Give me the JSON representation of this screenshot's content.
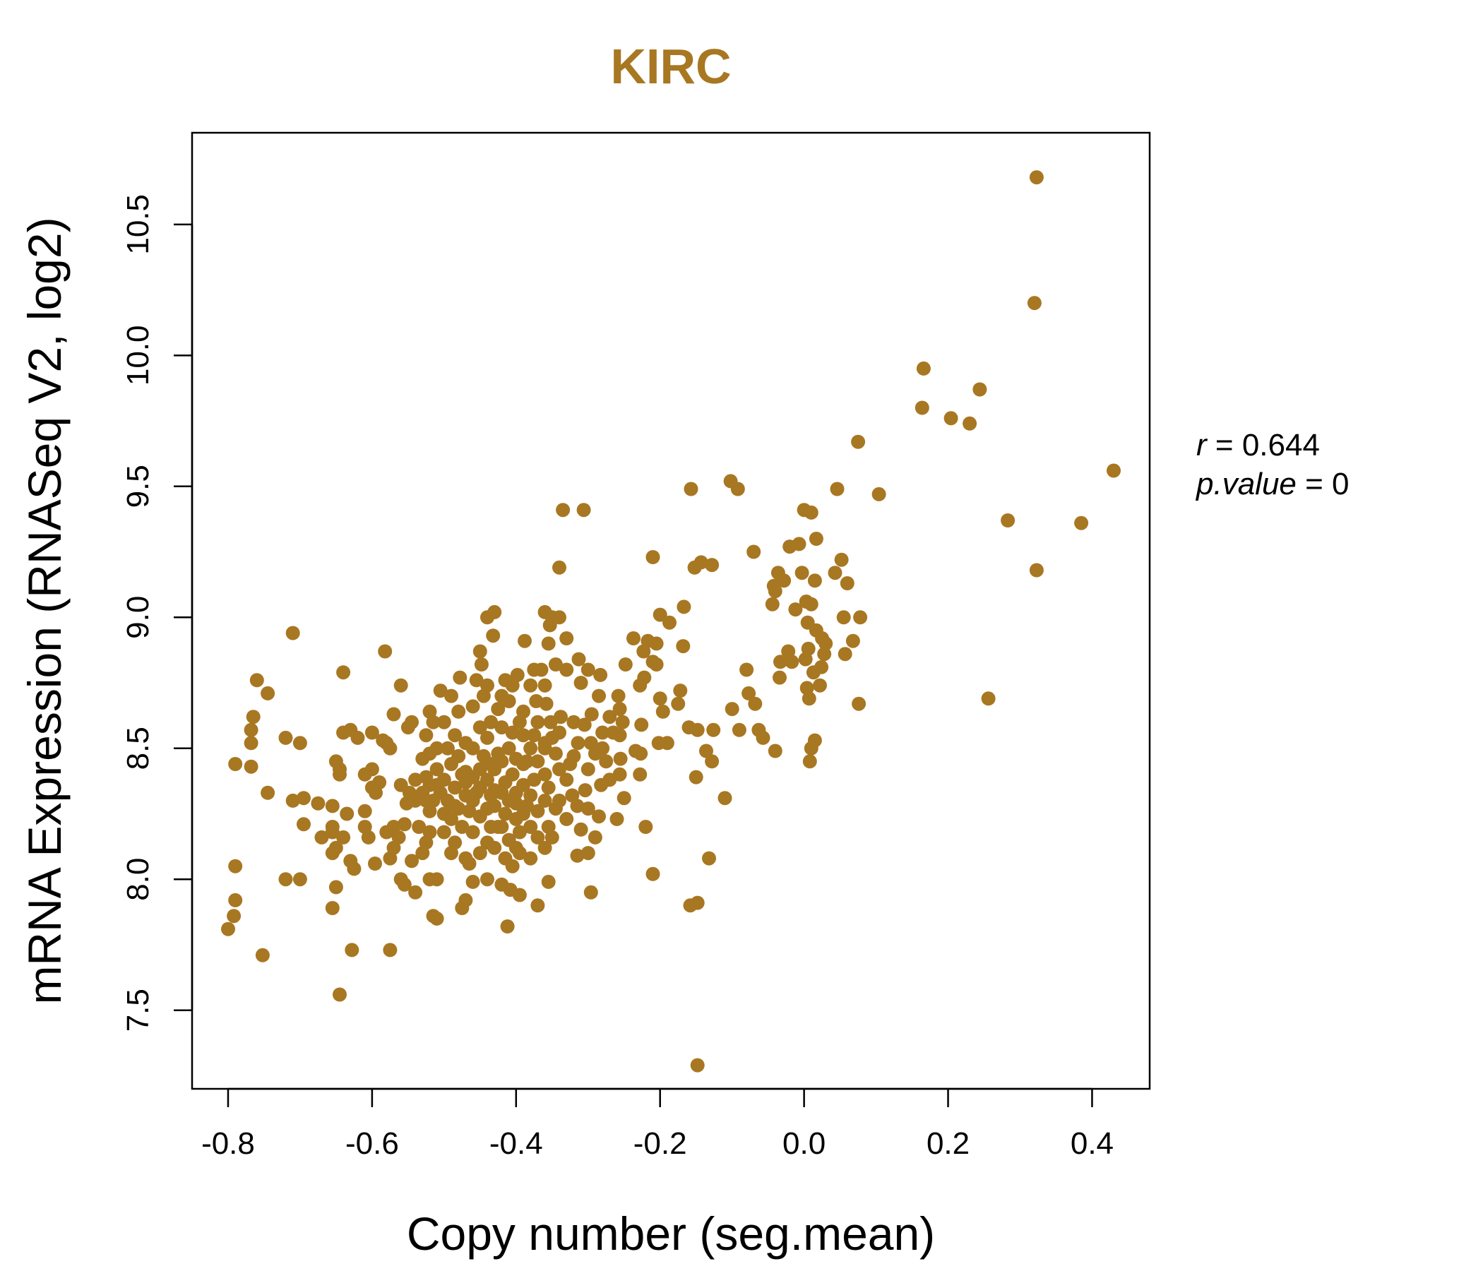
{
  "chart_data": {
    "type": "scatter",
    "title": "KIRC",
    "xlabel": "Copy number (seg.mean)",
    "ylabel": "mRNA Expression (RNASeq V2, log2)",
    "xlim": [
      -0.85,
      0.48
    ],
    "ylim": [
      7.2,
      10.85
    ],
    "xticks": [
      -0.8,
      -0.6,
      -0.4,
      -0.2,
      0.0,
      0.2,
      0.4
    ],
    "xtick_labels": [
      "-0.8",
      "-0.6",
      "-0.4",
      "-0.2",
      "0.0",
      "0.2",
      "0.4"
    ],
    "yticks": [
      7.5,
      8.0,
      8.5,
      9.0,
      9.5,
      10.0,
      10.5
    ],
    "ytick_labels": [
      "7.5",
      "8.0",
      "8.5",
      "9.0",
      "9.5",
      "10.0",
      "10.5"
    ],
    "point_color": "#a87722",
    "title_color": "#a87722",
    "grid": false,
    "annotations": [
      {
        "prefix": "r",
        "value": "0.644"
      },
      {
        "prefix": "p.value",
        "value": "0"
      }
    ],
    "points": [
      [
        0.323,
        10.68
      ],
      [
        0.32,
        10.2
      ],
      [
        0.166,
        9.95
      ],
      [
        0.164,
        9.8
      ],
      [
        0.244,
        9.87
      ],
      [
        0.204,
        9.76
      ],
      [
        0.23,
        9.74
      ],
      [
        0.075,
        9.67
      ],
      [
        0.43,
        9.56
      ],
      [
        0.046,
        9.49
      ],
      [
        0.104,
        9.47
      ],
      [
        0.283,
        9.37
      ],
      [
        0.385,
        9.36
      ],
      [
        0.323,
        9.18
      ],
      [
        0.256,
        8.69
      ],
      [
        -0.148,
        7.29
      ],
      [
        -0.102,
        9.52
      ],
      [
        -0.092,
        9.49
      ],
      [
        -0.157,
        9.49
      ],
      [
        -0.335,
        9.41
      ],
      [
        -0.306,
        9.41
      ],
      [
        -0.21,
        9.23
      ],
      [
        -0.143,
        9.21
      ],
      [
        -0.128,
        9.2
      ],
      [
        -0.152,
        9.19
      ],
      [
        -0.34,
        9.19
      ],
      [
        -0.07,
        9.25
      ],
      [
        -0.04,
        9.1
      ],
      [
        0.0,
        9.41
      ],
      [
        0.01,
        9.4
      ],
      [
        0.017,
        9.3
      ],
      [
        -0.02,
        9.27
      ],
      [
        -0.007,
        9.28
      ],
      [
        0.052,
        9.22
      ],
      [
        0.043,
        9.17
      ],
      [
        -0.036,
        9.17
      ],
      [
        -0.003,
        9.17
      ],
      [
        0.015,
        9.14
      ],
      [
        0.06,
        9.13
      ],
      [
        -0.028,
        9.14
      ],
      [
        -0.042,
        9.12
      ],
      [
        -0.044,
        9.05
      ],
      [
        0.003,
        9.06
      ],
      [
        0.01,
        9.05
      ],
      [
        0.078,
        9.0
      ],
      [
        0.055,
        9.0
      ],
      [
        -0.012,
        9.03
      ],
      [
        0.005,
        8.98
      ],
      [
        0.017,
        8.95
      ],
      [
        0.025,
        8.92
      ],
      [
        0.068,
        8.91
      ],
      [
        0.03,
        8.9
      ],
      [
        0.006,
        8.88
      ],
      [
        -0.022,
        8.87
      ],
      [
        0.028,
        8.86
      ],
      [
        0.057,
        8.86
      ],
      [
        0.002,
        8.84
      ],
      [
        -0.017,
        8.83
      ],
      [
        -0.033,
        8.83
      ],
      [
        0.024,
        8.81
      ],
      [
        0.013,
        8.79
      ],
      [
        -0.034,
        8.77
      ],
      [
        0.022,
        8.74
      ],
      [
        0.004,
        8.73
      ],
      [
        0.007,
        8.69
      ],
      [
        0.076,
        8.67
      ],
      [
        -0.08,
        8.8
      ],
      [
        -0.077,
        8.71
      ],
      [
        -0.068,
        8.67
      ],
      [
        -0.1,
        8.65
      ],
      [
        -0.09,
        8.57
      ],
      [
        -0.063,
        8.57
      ],
      [
        -0.057,
        8.54
      ],
      [
        -0.04,
        8.49
      ],
      [
        0.015,
        8.53
      ],
      [
        0.01,
        8.5
      ],
      [
        0.008,
        8.45
      ],
      [
        -0.172,
        8.72
      ],
      [
        -0.148,
        8.57
      ],
      [
        -0.126,
        8.57
      ],
      [
        -0.136,
        8.49
      ],
      [
        -0.128,
        8.45
      ],
      [
        -0.15,
        8.39
      ],
      [
        -0.11,
        8.31
      ],
      [
        -0.132,
        8.08
      ],
      [
        -0.158,
        7.9
      ],
      [
        -0.148,
        7.91
      ],
      [
        -0.21,
        8.02
      ],
      [
        -0.167,
        9.04
      ],
      [
        -0.2,
        9.01
      ],
      [
        -0.187,
        8.98
      ],
      [
        -0.217,
        8.91
      ],
      [
        -0.205,
        8.9
      ],
      [
        -0.168,
        8.89
      ],
      [
        -0.223,
        8.87
      ],
      [
        -0.21,
        8.83
      ],
      [
        -0.205,
        8.82
      ],
      [
        -0.222,
        8.77
      ],
      [
        -0.228,
        8.74
      ],
      [
        -0.2,
        8.69
      ],
      [
        -0.196,
        8.64
      ],
      [
        -0.175,
        8.67
      ],
      [
        -0.16,
        8.58
      ],
      [
        -0.19,
        8.52
      ],
      [
        -0.202,
        8.52
      ],
      [
        -0.226,
        8.59
      ],
      [
        -0.227,
        8.48
      ],
      [
        -0.228,
        8.4
      ],
      [
        -0.234,
        8.49
      ],
      [
        -0.22,
        8.2
      ],
      [
        -0.237,
        8.92
      ],
      [
        -0.248,
        8.82
      ],
      [
        -0.258,
        8.7
      ],
      [
        -0.256,
        8.65
      ],
      [
        -0.252,
        8.6
      ],
      [
        -0.27,
        8.62
      ],
      [
        -0.256,
        8.55
      ],
      [
        -0.28,
        8.5
      ],
      [
        -0.255,
        8.46
      ],
      [
        -0.256,
        8.4
      ],
      [
        -0.27,
        8.38
      ],
      [
        -0.25,
        8.31
      ],
      [
        -0.26,
        8.23
      ],
      [
        -0.285,
        8.7
      ],
      [
        -0.3,
        8.8
      ],
      [
        -0.283,
        8.78
      ],
      [
        -0.313,
        8.84
      ],
      [
        -0.33,
        8.8
      ],
      [
        -0.31,
        8.75
      ],
      [
        -0.295,
        8.63
      ],
      [
        -0.32,
        8.6
      ],
      [
        -0.305,
        8.59
      ],
      [
        -0.28,
        8.56
      ],
      [
        -0.296,
        8.52
      ],
      [
        -0.314,
        8.52
      ],
      [
        -0.29,
        8.48
      ],
      [
        -0.275,
        8.45
      ],
      [
        -0.32,
        8.47
      ],
      [
        -0.3,
        8.42
      ],
      [
        -0.282,
        8.36
      ],
      [
        -0.304,
        8.34
      ],
      [
        -0.322,
        8.32
      ],
      [
        -0.3,
        8.27
      ],
      [
        -0.285,
        8.24
      ],
      [
        -0.31,
        8.19
      ],
      [
        -0.29,
        8.16
      ],
      [
        -0.315,
        8.09
      ],
      [
        -0.3,
        8.1
      ],
      [
        -0.296,
        7.95
      ],
      [
        -0.338,
        8.62
      ],
      [
        -0.34,
        8.56
      ],
      [
        -0.35,
        8.54
      ],
      [
        -0.36,
        8.5
      ],
      [
        -0.345,
        8.48
      ],
      [
        -0.36,
        9.02
      ],
      [
        -0.35,
        9.0
      ],
      [
        -0.34,
        9.0
      ],
      [
        -0.353,
        8.97
      ],
      [
        -0.355,
        8.9
      ],
      [
        -0.33,
        8.92
      ],
      [
        -0.345,
        8.82
      ],
      [
        -0.365,
        8.8
      ],
      [
        -0.375,
        8.8
      ],
      [
        -0.36,
        8.74
      ],
      [
        -0.38,
        8.74
      ],
      [
        -0.372,
        8.68
      ],
      [
        -0.358,
        8.67
      ],
      [
        -0.39,
        8.64
      ],
      [
        -0.37,
        8.6
      ],
      [
        -0.352,
        8.6
      ],
      [
        -0.375,
        8.55
      ],
      [
        -0.39,
        8.55
      ],
      [
        -0.36,
        8.52
      ],
      [
        -0.38,
        8.5
      ],
      [
        -0.37,
        8.45
      ],
      [
        -0.39,
        8.44
      ],
      [
        -0.36,
        8.4
      ],
      [
        -0.375,
        8.38
      ],
      [
        -0.355,
        8.35
      ],
      [
        -0.38,
        8.32
      ],
      [
        -0.36,
        8.3
      ],
      [
        -0.34,
        8.3
      ],
      [
        -0.37,
        8.26
      ],
      [
        -0.39,
        8.25
      ],
      [
        -0.355,
        8.2
      ],
      [
        -0.38,
        8.2
      ],
      [
        -0.37,
        8.16
      ],
      [
        -0.36,
        8.12
      ],
      [
        -0.38,
        8.08
      ],
      [
        -0.355,
        7.99
      ],
      [
        -0.37,
        7.9
      ],
      [
        -0.388,
        8.91
      ],
      [
        -0.398,
        8.78
      ],
      [
        -0.405,
        8.74
      ],
      [
        -0.415,
        8.76
      ],
      [
        -0.41,
        8.68
      ],
      [
        -0.42,
        8.7
      ],
      [
        -0.425,
        8.65
      ],
      [
        -0.395,
        8.6
      ],
      [
        -0.405,
        8.56
      ],
      [
        -0.42,
        8.58
      ],
      [
        -0.41,
        8.5
      ],
      [
        -0.4,
        8.46
      ],
      [
        -0.42,
        8.45
      ],
      [
        -0.43,
        8.42
      ],
      [
        -0.405,
        8.4
      ],
      [
        -0.415,
        8.37
      ],
      [
        -0.42,
        8.33
      ],
      [
        -0.4,
        8.33
      ],
      [
        -0.41,
        8.3
      ],
      [
        -0.43,
        8.28
      ],
      [
        -0.415,
        8.25
      ],
      [
        -0.4,
        8.23
      ],
      [
        -0.42,
        8.2
      ],
      [
        -0.41,
        8.15
      ],
      [
        -0.4,
        8.12
      ],
      [
        -0.415,
        8.08
      ],
      [
        -0.405,
        8.05
      ],
      [
        -0.42,
        7.98
      ],
      [
        -0.408,
        7.96
      ],
      [
        -0.395,
        7.94
      ],
      [
        -0.412,
        7.82
      ],
      [
        -0.44,
        9.0
      ],
      [
        -0.432,
        8.93
      ],
      [
        -0.43,
        9.02
      ],
      [
        -0.45,
        8.87
      ],
      [
        -0.448,
        8.82
      ],
      [
        -0.455,
        8.76
      ],
      [
        -0.44,
        8.74
      ],
      [
        -0.445,
        8.7
      ],
      [
        -0.46,
        8.66
      ],
      [
        -0.435,
        8.6
      ],
      [
        -0.45,
        8.58
      ],
      [
        -0.44,
        8.54
      ],
      [
        -0.46,
        8.5
      ],
      [
        -0.445,
        8.47
      ],
      [
        -0.435,
        8.44
      ],
      [
        -0.45,
        8.42
      ],
      [
        -0.46,
        8.39
      ],
      [
        -0.44,
        8.38
      ],
      [
        -0.45,
        8.35
      ],
      [
        -0.435,
        8.32
      ],
      [
        -0.46,
        8.3
      ],
      [
        -0.44,
        8.27
      ],
      [
        -0.45,
        8.24
      ],
      [
        -0.435,
        8.2
      ],
      [
        -0.46,
        8.18
      ],
      [
        -0.44,
        8.14
      ],
      [
        -0.45,
        8.1
      ],
      [
        -0.465,
        8.06
      ],
      [
        -0.44,
        8.0
      ],
      [
        -0.47,
        7.92
      ],
      [
        -0.475,
        7.89
      ],
      [
        -0.478,
        8.77
      ],
      [
        -0.49,
        8.7
      ],
      [
        -0.48,
        8.64
      ],
      [
        -0.5,
        8.6
      ],
      [
        -0.485,
        8.55
      ],
      [
        -0.47,
        8.52
      ],
      [
        -0.495,
        8.5
      ],
      [
        -0.48,
        8.47
      ],
      [
        -0.49,
        8.44
      ],
      [
        -0.475,
        8.4
      ],
      [
        -0.5,
        8.38
      ],
      [
        -0.485,
        8.35
      ],
      [
        -0.47,
        8.32
      ],
      [
        -0.495,
        8.3
      ],
      [
        -0.48,
        8.27
      ],
      [
        -0.49,
        8.23
      ],
      [
        -0.475,
        8.2
      ],
      [
        -0.5,
        8.18
      ],
      [
        -0.485,
        8.14
      ],
      [
        -0.49,
        8.1
      ],
      [
        -0.47,
        8.08
      ],
      [
        -0.46,
        7.99
      ],
      [
        -0.51,
        8.0
      ],
      [
        -0.515,
        7.86
      ],
      [
        -0.51,
        7.85
      ],
      [
        -0.505,
        8.72
      ],
      [
        -0.52,
        8.64
      ],
      [
        -0.515,
        8.6
      ],
      [
        -0.525,
        8.55
      ],
      [
        -0.51,
        8.5
      ],
      [
        -0.52,
        8.48
      ],
      [
        -0.53,
        8.46
      ],
      [
        -0.51,
        8.42
      ],
      [
        -0.525,
        8.39
      ],
      [
        -0.52,
        8.36
      ],
      [
        -0.53,
        8.33
      ],
      [
        -0.515,
        8.3
      ],
      [
        -0.52,
        8.26
      ],
      [
        -0.535,
        8.2
      ],
      [
        -0.52,
        8.18
      ],
      [
        -0.525,
        8.14
      ],
      [
        -0.53,
        8.1
      ],
      [
        -0.52,
        8.0
      ],
      [
        -0.545,
        8.07
      ],
      [
        -0.54,
        8.38
      ],
      [
        -0.548,
        8.33
      ],
      [
        -0.56,
        8.36
      ],
      [
        -0.552,
        8.29
      ],
      [
        -0.555,
        8.21
      ],
      [
        -0.563,
        8.16
      ],
      [
        -0.55,
        8.58
      ],
      [
        -0.545,
        8.6
      ],
      [
        -0.57,
        8.63
      ],
      [
        -0.56,
        8.74
      ],
      [
        -0.575,
        8.5
      ],
      [
        -0.58,
        8.52
      ],
      [
        -0.57,
        8.2
      ],
      [
        -0.58,
        8.18
      ],
      [
        -0.57,
        8.12
      ],
      [
        -0.575,
        8.08
      ],
      [
        -0.56,
        8.0
      ],
      [
        -0.555,
        7.98
      ],
      [
        -0.54,
        7.95
      ],
      [
        -0.575,
        7.73
      ],
      [
        -0.582,
        8.87
      ],
      [
        -0.585,
        8.53
      ],
      [
        -0.59,
        8.37
      ],
      [
        -0.595,
        8.33
      ],
      [
        -0.6,
        8.35
      ],
      [
        -0.6,
        8.42
      ],
      [
        -0.61,
        8.4
      ],
      [
        -0.61,
        8.26
      ],
      [
        -0.61,
        8.2
      ],
      [
        -0.605,
        8.16
      ],
      [
        -0.596,
        8.06
      ],
      [
        -0.62,
        8.54
      ],
      [
        -0.6,
        8.56
      ],
      [
        -0.63,
        8.57
      ],
      [
        -0.625,
        8.04
      ],
      [
        -0.63,
        8.07
      ],
      [
        -0.635,
        8.25
      ],
      [
        -0.64,
        8.56
      ],
      [
        -0.645,
        8.42
      ],
      [
        -0.645,
        8.4
      ],
      [
        -0.64,
        8.79
      ],
      [
        -0.65,
        8.45
      ],
      [
        -0.65,
        8.12
      ],
      [
        -0.64,
        8.16
      ],
      [
        -0.655,
        8.28
      ],
      [
        -0.655,
        8.2
      ],
      [
        -0.655,
        8.18
      ],
      [
        -0.655,
        8.1
      ],
      [
        -0.65,
        7.97
      ],
      [
        -0.655,
        7.89
      ],
      [
        -0.645,
        7.56
      ],
      [
        -0.628,
        7.73
      ],
      [
        -0.67,
        8.16
      ],
      [
        -0.675,
        8.29
      ],
      [
        -0.695,
        8.31
      ],
      [
        -0.695,
        8.21
      ],
      [
        -0.71,
        8.3
      ],
      [
        -0.71,
        8.94
      ],
      [
        -0.7,
        8.52
      ],
      [
        -0.72,
        8.54
      ],
      [
        -0.7,
        8.0
      ],
      [
        -0.72,
        8.0
      ],
      [
        -0.745,
        8.71
      ],
      [
        -0.76,
        8.76
      ],
      [
        -0.765,
        8.62
      ],
      [
        -0.768,
        8.57
      ],
      [
        -0.768,
        8.52
      ],
      [
        -0.768,
        8.43
      ],
      [
        -0.745,
        8.33
      ],
      [
        -0.79,
        8.44
      ],
      [
        -0.79,
        8.05
      ],
      [
        -0.79,
        7.92
      ],
      [
        -0.792,
        7.86
      ],
      [
        -0.8,
        7.81
      ],
      [
        -0.752,
        7.71
      ],
      [
        -0.47,
        8.41
      ],
      [
        -0.455,
        8.33
      ],
      [
        -0.47,
        8.37
      ],
      [
        -0.465,
        8.26
      ],
      [
        -0.485,
        8.28
      ],
      [
        -0.5,
        8.25
      ],
      [
        -0.505,
        8.33
      ],
      [
        -0.51,
        8.36
      ],
      [
        -0.525,
        8.3
      ],
      [
        -0.54,
        8.3
      ],
      [
        -0.425,
        8.48
      ],
      [
        -0.43,
        8.34
      ],
      [
        -0.39,
        8.36
      ],
      [
        -0.385,
        8.28
      ],
      [
        -0.395,
        8.18
      ],
      [
        -0.4,
        8.29
      ],
      [
        -0.425,
        8.2
      ],
      [
        -0.43,
        8.12
      ],
      [
        -0.395,
        8.1
      ],
      [
        -0.385,
        8.45
      ],
      [
        -0.34,
        8.42
      ],
      [
        -0.33,
        8.38
      ],
      [
        -0.325,
        8.44
      ],
      [
        -0.345,
        8.27
      ],
      [
        -0.33,
        8.23
      ],
      [
        -0.315,
        8.28
      ],
      [
        -0.35,
        8.16
      ],
      [
        -0.265,
        8.56
      ]
    ]
  }
}
